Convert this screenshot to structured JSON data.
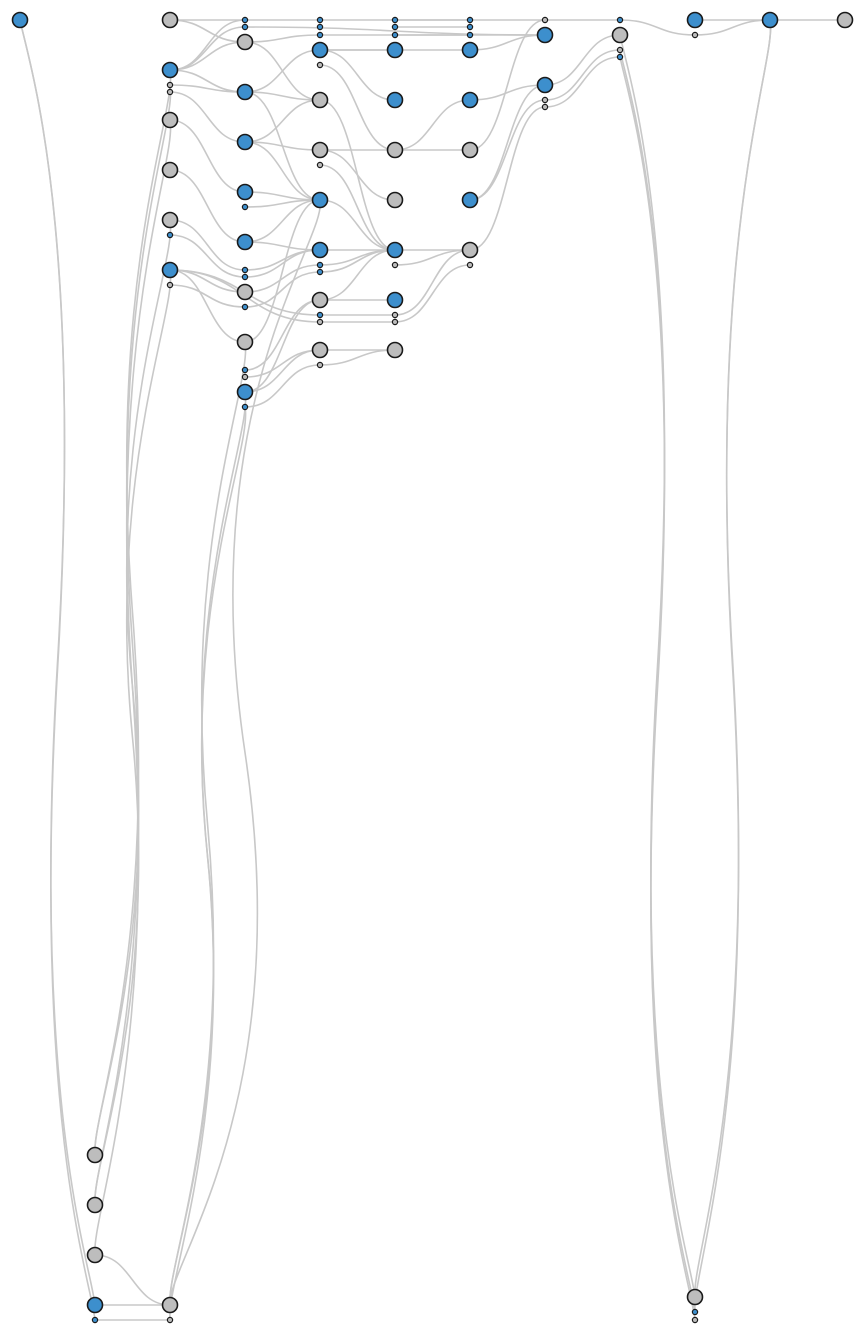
{
  "diagram": {
    "kind": "layered-dag",
    "colors": {
      "blue": "#3d8fcd",
      "gray": "#bdbdbd",
      "edge": "#c8c8c8",
      "outline": "#1a1a1a"
    },
    "nodes": [
      {
        "id": "n0",
        "color": "blue"
      },
      {
        "id": "n1",
        "color": "gray"
      },
      {
        "id": "n2",
        "color": "blue"
      },
      {
        "id": "n3",
        "color": "gray"
      },
      {
        "id": "n4",
        "color": "gray"
      },
      {
        "id": "n5",
        "color": "gray"
      },
      {
        "id": "n6",
        "color": "blue"
      },
      {
        "id": "n7",
        "color": "gray"
      },
      {
        "id": "n8",
        "color": "blue"
      },
      {
        "id": "n9",
        "color": "blue"
      },
      {
        "id": "n10",
        "color": "blue"
      },
      {
        "id": "n11",
        "color": "blue"
      },
      {
        "id": "n12",
        "color": "gray"
      },
      {
        "id": "n13",
        "color": "gray"
      },
      {
        "id": "n14",
        "color": "blue"
      },
      {
        "id": "n15",
        "color": "blue"
      },
      {
        "id": "n16",
        "color": "gray"
      },
      {
        "id": "n17",
        "color": "gray"
      },
      {
        "id": "n18",
        "color": "blue"
      },
      {
        "id": "n19",
        "color": "blue"
      },
      {
        "id": "n20",
        "color": "gray"
      },
      {
        "id": "n21",
        "color": "gray"
      },
      {
        "id": "n22",
        "color": "blue"
      },
      {
        "id": "n23",
        "color": "gray"
      },
      {
        "id": "n24",
        "color": "gray"
      },
      {
        "id": "n25",
        "color": "blue"
      },
      {
        "id": "n26",
        "color": "gray"
      },
      {
        "id": "n27",
        "color": "blue"
      },
      {
        "id": "n28",
        "color": "blue"
      },
      {
        "id": "n29",
        "color": "gray"
      },
      {
        "id": "n30",
        "color": "blue"
      },
      {
        "id": "n31",
        "color": "gray"
      },
      {
        "id": "n32",
        "color": "blue"
      },
      {
        "id": "n33",
        "color": "blue"
      },
      {
        "id": "n34",
        "color": "blue"
      },
      {
        "id": "n35",
        "color": "blue"
      },
      {
        "id": "n36",
        "color": "gray"
      },
      {
        "id": "n37",
        "color": "gray"
      },
      {
        "id": "n38",
        "color": "gray"
      },
      {
        "id": "n39",
        "color": "gray"
      },
      {
        "id": "n40",
        "color": "blue"
      },
      {
        "id": "n41",
        "color": "gray"
      },
      {
        "id": "n42",
        "color": "gray"
      },
      {
        "id": "n43",
        "color": "blue"
      },
      {
        "id": "n44",
        "color": "blue"
      },
      {
        "id": "n45",
        "color": "gray"
      }
    ],
    "edges": [
      [
        "n0",
        "n43"
      ],
      [
        "n0",
        "n41"
      ],
      [
        "n0",
        "n40"
      ],
      [
        "n1",
        "n8"
      ],
      [
        "n1",
        "n9"
      ],
      [
        "n1",
        "n32"
      ],
      [
        "n1",
        "n33"
      ],
      [
        "n2",
        "n7"
      ],
      [
        "n2",
        "n8"
      ],
      [
        "n2",
        "n9"
      ],
      [
        "n2",
        "n10"
      ],
      [
        "n2",
        "n11"
      ],
      [
        "n3",
        "n10"
      ],
      [
        "n4",
        "n11"
      ],
      [
        "n5",
        "n12"
      ],
      [
        "n6",
        "n12"
      ],
      [
        "n6",
        "n13"
      ],
      [
        "n6",
        "n14"
      ],
      [
        "n6",
        "n15"
      ],
      [
        "n7",
        "n16"
      ],
      [
        "n7",
        "n17"
      ],
      [
        "n7",
        "n18"
      ],
      [
        "n8",
        "n16"
      ],
      [
        "n8",
        "n17"
      ],
      [
        "n8",
        "n19"
      ],
      [
        "n9",
        "n17"
      ],
      [
        "n9",
        "n20"
      ],
      [
        "n10",
        "n18"
      ],
      [
        "n10",
        "n19"
      ],
      [
        "n11",
        "n19"
      ],
      [
        "n11",
        "n21"
      ],
      [
        "n12",
        "n20"
      ],
      [
        "n12",
        "n22"
      ],
      [
        "n13",
        "n18"
      ],
      [
        "n14",
        "n23"
      ],
      [
        "n14",
        "n24"
      ],
      [
        "n15",
        "n23"
      ],
      [
        "n16",
        "n25"
      ],
      [
        "n16",
        "n26"
      ],
      [
        "n17",
        "n27"
      ],
      [
        "n17",
        "n28"
      ],
      [
        "n18",
        "n27"
      ],
      [
        "n18",
        "n29"
      ],
      [
        "n19",
        "n28"
      ],
      [
        "n19",
        "n30"
      ],
      [
        "n20",
        "n28"
      ],
      [
        "n20",
        "n31"
      ],
      [
        "n21",
        "n28"
      ],
      [
        "n21",
        "n30"
      ],
      [
        "n22",
        "n31"
      ],
      [
        "n23",
        "n31"
      ],
      [
        "n25",
        "n34"
      ],
      [
        "n26",
        "n35"
      ],
      [
        "n26",
        "n36"
      ],
      [
        "n27",
        "n36"
      ],
      [
        "n28",
        "n37"
      ],
      [
        "n29",
        "n37"
      ],
      [
        "n30",
        "n37"
      ],
      [
        "n31",
        "n37"
      ],
      [
        "n32",
        "n38"
      ],
      [
        "n33",
        "n38"
      ],
      [
        "n34",
        "n39"
      ],
      [
        "n35",
        "n39"
      ],
      [
        "n36",
        "n39"
      ],
      [
        "n37",
        "n39"
      ],
      [
        "n38",
        "n40"
      ],
      [
        "n39",
        "n41"
      ],
      [
        "n40",
        "n44"
      ],
      [
        "n41",
        "n44"
      ],
      [
        "n44",
        "n45"
      ],
      [
        "n42",
        "n2"
      ],
      [
        "n42",
        "n6"
      ],
      [
        "n43",
        "n3"
      ],
      [
        "n43",
        "n4"
      ],
      [
        "n43",
        "n5"
      ],
      [
        "n40",
        "n7"
      ],
      [
        "n40",
        "n14"
      ],
      [
        "n40",
        "n15"
      ],
      [
        "n41",
        "n13"
      ],
      [
        "n41",
        "n23"
      ],
      [
        "n42",
        "n45"
      ],
      [
        "n40",
        "n38"
      ]
    ]
  }
}
